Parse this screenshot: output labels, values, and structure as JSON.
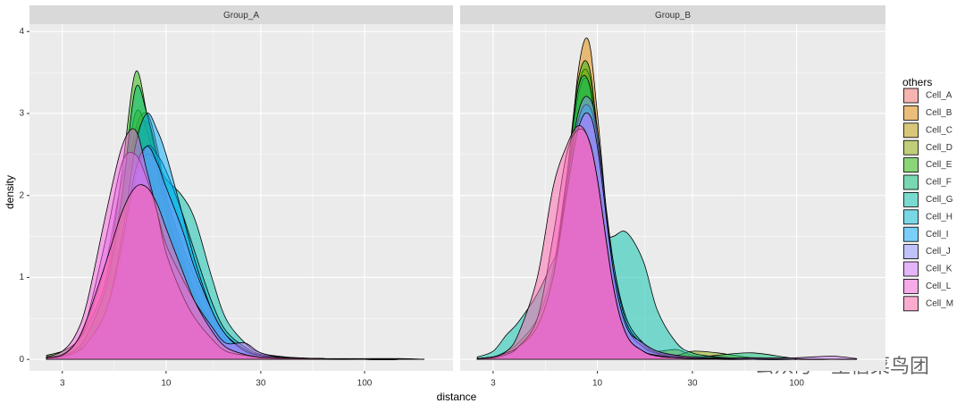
{
  "chart_data": [
    {
      "type": "area",
      "title": "Group_A",
      "x_label": "distance",
      "y_label": "density",
      "legend_title": "others",
      "log_x": true,
      "grid": true,
      "legend_position": "right",
      "xlim": [
        2.05,
        279
      ],
      "ylim": [
        -0.14,
        4.09
      ],
      "xticks": [
        3,
        10,
        30,
        100
      ],
      "yticks": [
        0,
        1,
        2,
        3,
        4
      ],
      "x": [
        2.5,
        3,
        3.5,
        4,
        5,
        6,
        7,
        8,
        9,
        10,
        12,
        14,
        17,
        20,
        25,
        30,
        40,
        60,
        100,
        150,
        200
      ],
      "series": [
        {
          "name": "Cell_A",
          "color": "#F8766D",
          "values": [
            0.02,
            0.06,
            0.2,
            0.45,
            1.2,
            2.2,
            2.6,
            2.4,
            2.0,
            1.6,
            1.0,
            0.7,
            0.4,
            0.2,
            0.1,
            0.05,
            0.02,
            0.01,
            0,
            0,
            0
          ]
        },
        {
          "name": "Cell_B",
          "color": "#E18A00",
          "values": [
            0.02,
            0.04,
            0.12,
            0.3,
            0.9,
            1.9,
            2.8,
            3.0,
            2.6,
            2.0,
            1.3,
            0.8,
            0.4,
            0.2,
            0.08,
            0.04,
            0.02,
            0.01,
            0,
            0,
            0
          ]
        },
        {
          "name": "Cell_C",
          "color": "#BE9C00",
          "values": [
            0.01,
            0.03,
            0.1,
            0.25,
            0.8,
            1.8,
            2.7,
            2.9,
            2.5,
            1.9,
            1.2,
            0.8,
            0.45,
            0.2,
            0.1,
            0.05,
            0.02,
            0.01,
            0,
            0,
            0
          ]
        },
        {
          "name": "Cell_D",
          "color": "#8CAB00",
          "values": [
            0.03,
            0.05,
            0.12,
            0.3,
            0.9,
            2.0,
            3.0,
            2.8,
            2.3,
            1.8,
            1.2,
            0.8,
            0.4,
            0.2,
            0.1,
            0.04,
            0.02,
            0.01,
            0,
            0,
            0
          ]
        },
        {
          "name": "Cell_E",
          "color": "#24B700",
          "values": [
            0.05,
            0.1,
            0.2,
            0.4,
            1.0,
            2.3,
            3.5,
            3.0,
            2.4,
            1.8,
            1.1,
            0.7,
            0.35,
            0.15,
            0.06,
            0.03,
            0.01,
            0,
            0,
            0,
            0
          ]
        },
        {
          "name": "Cell_F",
          "color": "#00BE70",
          "values": [
            0.02,
            0.05,
            0.12,
            0.3,
            0.9,
            2.0,
            3.3,
            3.0,
            2.5,
            2.0,
            1.4,
            1.0,
            0.55,
            0.25,
            0.1,
            0.04,
            0.02,
            0.01,
            0,
            0,
            0
          ]
        },
        {
          "name": "Cell_G",
          "color": "#00C1AB",
          "values": [
            0.01,
            0.03,
            0.1,
            0.2,
            0.6,
            1.3,
            2.2,
            2.5,
            2.4,
            2.2,
            2.0,
            1.7,
            1.0,
            0.5,
            0.2,
            0.08,
            0.03,
            0.01,
            0,
            0,
            0
          ]
        },
        {
          "name": "Cell_H",
          "color": "#00BBDA",
          "values": [
            0.01,
            0.03,
            0.08,
            0.2,
            0.6,
            1.3,
            2.2,
            2.6,
            2.5,
            2.3,
            1.8,
            1.3,
            0.7,
            0.35,
            0.15,
            0.06,
            0.02,
            0.01,
            0,
            0,
            0
          ]
        },
        {
          "name": "Cell_I",
          "color": "#00ACFC",
          "values": [
            0.01,
            0.03,
            0.08,
            0.2,
            0.6,
            1.5,
            2.6,
            3.0,
            2.8,
            2.5,
            1.8,
            1.2,
            0.6,
            0.3,
            0.12,
            0.05,
            0.02,
            0.01,
            0,
            0,
            0
          ]
        },
        {
          "name": "Cell_J",
          "color": "#8B93FF",
          "values": [
            0.01,
            0.03,
            0.08,
            0.2,
            0.6,
            1.4,
            2.3,
            2.6,
            2.4,
            2.1,
            1.6,
            1.1,
            0.6,
            0.3,
            0.1,
            0.05,
            0.02,
            0.01,
            0,
            0,
            0
          ]
        },
        {
          "name": "Cell_K",
          "color": "#D575FE",
          "values": [
            0.02,
            0.06,
            0.2,
            0.5,
            1.5,
            2.4,
            2.5,
            2.2,
            1.8,
            1.4,
            1.0,
            0.7,
            0.4,
            0.2,
            0.2,
            0.08,
            0.02,
            0.01,
            0,
            0,
            0
          ]
        },
        {
          "name": "Cell_L",
          "color": "#F962DD",
          "values": [
            0.03,
            0.1,
            0.3,
            0.7,
            1.8,
            2.6,
            2.8,
            2.3,
            1.8,
            1.3,
            0.8,
            0.5,
            0.25,
            0.1,
            0.05,
            0.02,
            0.01,
            0.01,
            0,
            0.01,
            0
          ]
        },
        {
          "name": "Cell_M",
          "color": "#FF65AC",
          "values": [
            0.02,
            0.05,
            0.2,
            0.5,
            1.2,
            1.8,
            2.1,
            2.1,
            1.9,
            1.6,
            1.1,
            0.7,
            0.35,
            0.15,
            0.06,
            0.03,
            0.02,
            0.01,
            0.01,
            0.01,
            0
          ]
        }
      ]
    },
    {
      "type": "area",
      "title": "Group_B",
      "log_x": true,
      "grid": true,
      "xlim": [
        2.05,
        279
      ],
      "ylim": [
        -0.14,
        4.09
      ],
      "xticks": [
        3,
        10,
        30,
        100
      ],
      "yticks": [
        0,
        1,
        2,
        3,
        4
      ],
      "x": [
        2.5,
        3,
        3.5,
        4,
        5,
        6,
        7,
        8,
        9,
        10,
        12,
        14,
        17,
        20,
        25,
        30,
        40,
        60,
        100,
        150,
        200
      ],
      "series": [
        {
          "name": "Cell_A",
          "color": "#F8766D",
          "values": [
            0.01,
            0.03,
            0.1,
            0.2,
            0.5,
            1.1,
            2.2,
            3.0,
            3.2,
            2.6,
            1.0,
            0.35,
            0.12,
            0.05,
            0.02,
            0.01,
            0,
            0,
            0,
            0,
            0
          ]
        },
        {
          "name": "Cell_B",
          "color": "#E18A00",
          "values": [
            0,
            0.01,
            0.05,
            0.1,
            0.3,
            0.8,
            2.0,
            3.5,
            3.9,
            3.0,
            1.0,
            0.3,
            0.1,
            0.05,
            0.03,
            0.02,
            0.01,
            0,
            0,
            0,
            0
          ]
        },
        {
          "name": "Cell_C",
          "color": "#BE9C00",
          "values": [
            0,
            0.02,
            0.05,
            0.1,
            0.3,
            0.8,
            2.0,
            3.3,
            3.5,
            2.8,
            1.0,
            0.35,
            0.15,
            0.1,
            0.12,
            0.05,
            0.01,
            0,
            0,
            0,
            0
          ]
        },
        {
          "name": "Cell_D",
          "color": "#8CAB00",
          "values": [
            0,
            0.02,
            0.05,
            0.12,
            0.35,
            0.9,
            2.1,
            3.2,
            3.4,
            2.7,
            1.0,
            0.35,
            0.15,
            0.08,
            0.05,
            0.1,
            0.08,
            0.02,
            0,
            0,
            0
          ]
        },
        {
          "name": "Cell_E",
          "color": "#24B700",
          "values": [
            0,
            0.02,
            0.05,
            0.12,
            0.35,
            0.9,
            2.2,
            3.4,
            3.6,
            2.8,
            1.0,
            0.35,
            0.15,
            0.05,
            0.03,
            0.02,
            0.01,
            0,
            0,
            0,
            0
          ]
        },
        {
          "name": "Cell_F",
          "color": "#00BE70",
          "values": [
            0.01,
            0.03,
            0.08,
            0.15,
            0.4,
            1.0,
            2.2,
            3.3,
            3.4,
            2.7,
            1.0,
            0.3,
            0.12,
            0.05,
            0.03,
            0.02,
            0.05,
            0.08,
            0.01,
            0,
            0
          ]
        },
        {
          "name": "Cell_G",
          "color": "#00C1AB",
          "values": [
            0.03,
            0.1,
            0.3,
            0.45,
            0.8,
            1.2,
            1.5,
            1.55,
            1.5,
            1.45,
            1.5,
            1.55,
            1.2,
            0.6,
            0.2,
            0.08,
            0.03,
            0.01,
            0,
            0,
            0
          ]
        },
        {
          "name": "Cell_H",
          "color": "#00BBDA",
          "values": [
            0.01,
            0.03,
            0.08,
            0.15,
            0.4,
            1.0,
            2.0,
            2.8,
            3.0,
            2.6,
            1.2,
            0.5,
            0.2,
            0.1,
            0.04,
            0.02,
            0.01,
            0,
            0,
            0,
            0
          ]
        },
        {
          "name": "Cell_I",
          "color": "#00ACFC",
          "values": [
            0.01,
            0.03,
            0.08,
            0.15,
            0.4,
            1.0,
            2.0,
            2.9,
            3.1,
            2.7,
            1.2,
            0.45,
            0.18,
            0.08,
            0.03,
            0.02,
            0.01,
            0,
            0,
            0,
            0
          ]
        },
        {
          "name": "Cell_J",
          "color": "#8B93FF",
          "values": [
            0.01,
            0.03,
            0.08,
            0.15,
            0.4,
            1.0,
            2.1,
            3.0,
            3.2,
            2.8,
            1.1,
            0.4,
            0.15,
            0.07,
            0.03,
            0.02,
            0.01,
            0,
            0,
            0,
            0
          ]
        },
        {
          "name": "Cell_K",
          "color": "#D575FE",
          "values": [
            0.01,
            0.03,
            0.08,
            0.15,
            0.4,
            1.0,
            2.0,
            2.8,
            3.0,
            2.6,
            1.1,
            0.4,
            0.2,
            0.1,
            0.05,
            0.03,
            0.02,
            0.02,
            0.02,
            0.04,
            0.01
          ]
        },
        {
          "name": "Cell_L",
          "color": "#F962DD",
          "values": [
            0.01,
            0.02,
            0.06,
            0.15,
            0.5,
            1.5,
            2.5,
            2.8,
            2.7,
            2.2,
            0.9,
            0.3,
            0.1,
            0.05,
            0.02,
            0.01,
            0.01,
            0,
            0,
            0,
            0
          ]
        },
        {
          "name": "Cell_M",
          "color": "#FF65AC",
          "values": [
            0.01,
            0.03,
            0.1,
            0.3,
            1.0,
            2.1,
            2.6,
            2.85,
            2.7,
            2.2,
            0.9,
            0.3,
            0.1,
            0.04,
            0.02,
            0.01,
            0,
            0,
            0,
            0,
            0
          ]
        }
      ]
    }
  ],
  "watermark": "公众号 · 生信菜鸟团"
}
